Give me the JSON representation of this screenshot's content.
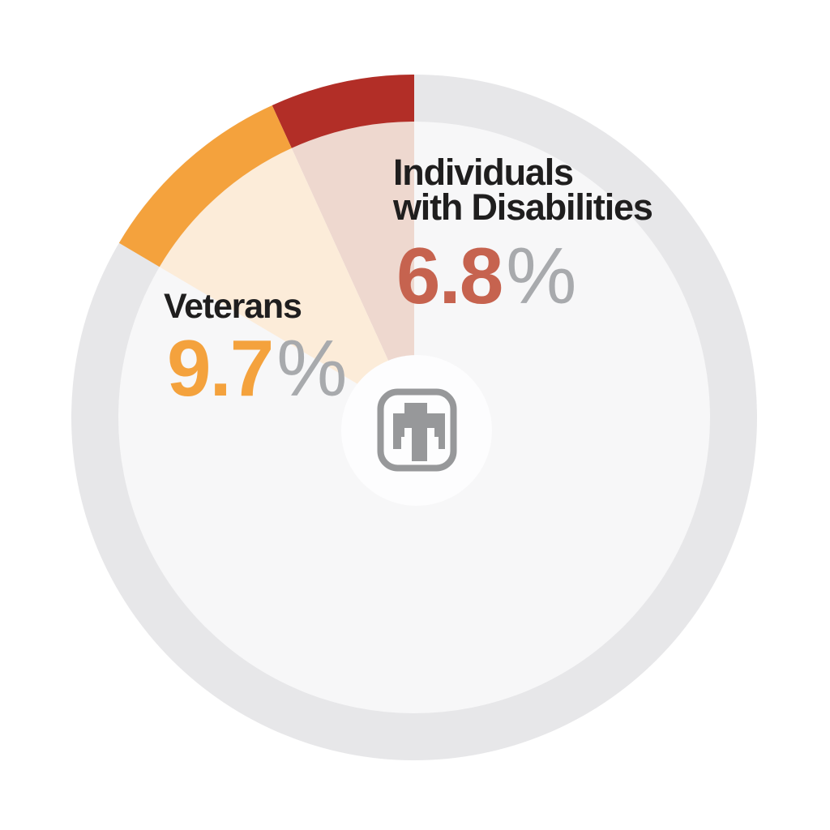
{
  "chart_data": {
    "type": "pie",
    "style": "donut-infographic",
    "direction": "counter-clockwise",
    "segments_end_at": "12-o-clock",
    "segments": [
      {
        "label": "Individuals with Disabilities",
        "value": 6.8,
        "display_value": "6.8",
        "unit_symbol": "%",
        "ring_color": "#b22e27",
        "inner_wedge_color": "#eed8cf",
        "value_text_color": "#c6634f"
      },
      {
        "label": "Veterans",
        "value": 9.7,
        "display_value": "9.7",
        "unit_symbol": "%",
        "ring_color": "#f4a23d",
        "inner_wedge_color": "#fcecd9",
        "value_text_color": "#f4a23d"
      }
    ],
    "remainder_ring_color": "#e7e7e9",
    "remainder_inner_color": "#f7f7f8",
    "legend_position": "labels inside donut"
  },
  "labels": {
    "disabilities": {
      "line1": "Individuals",
      "line2": "with Disabilities",
      "value": "6.8",
      "percent": "%"
    },
    "veterans": {
      "name": "Veterans",
      "value": "9.7",
      "percent": "%"
    }
  },
  "center_logo": {
    "name": "sandia-thunderbird",
    "color": "#97989a",
    "background": "#fdfdfe"
  },
  "colors": {
    "background": "#ffffff",
    "label_text": "#1f1e1e",
    "percent_sign": "#a8aaad"
  }
}
